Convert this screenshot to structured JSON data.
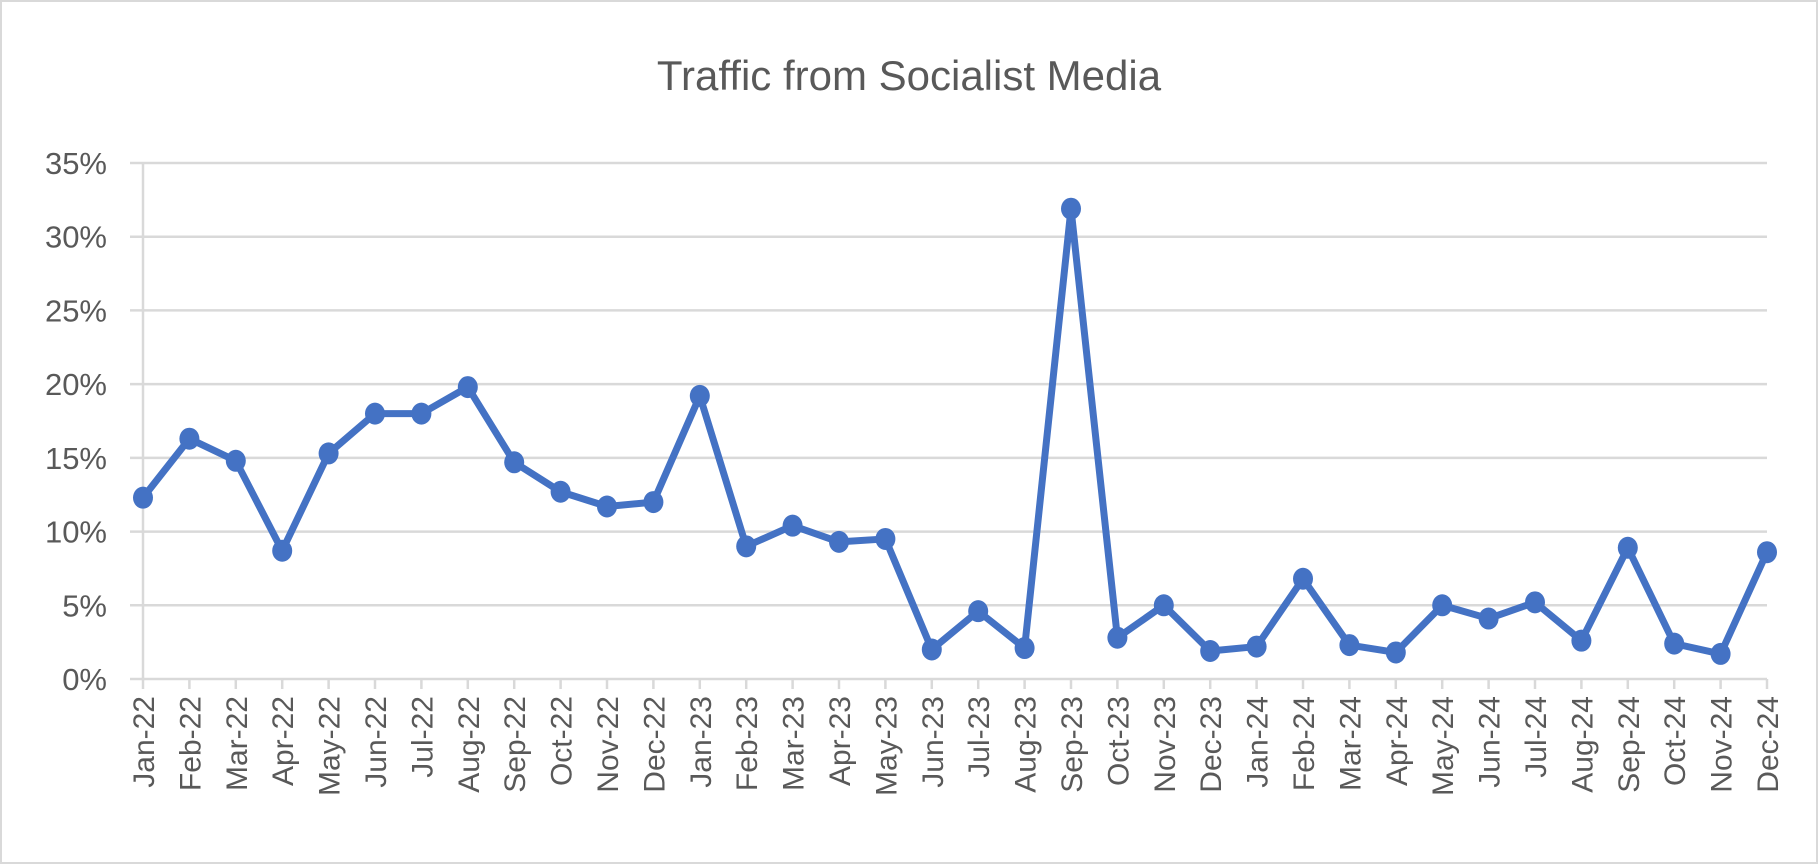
{
  "chart_data": {
    "type": "line",
    "title": "Traffic from Socialist Media",
    "xlabel": "",
    "ylabel": "",
    "categories": [
      "Jan-22",
      "Feb-22",
      "Mar-22",
      "Apr-22",
      "May-22",
      "Jun-22",
      "Jul-22",
      "Aug-22",
      "Sep-22",
      "Oct-22",
      "Nov-22",
      "Dec-22",
      "Jan-23",
      "Feb-23",
      "Mar-23",
      "Apr-23",
      "May-23",
      "Jun-23",
      "Jul-23",
      "Aug-23",
      "Sep-23",
      "Oct-23",
      "Nov-23",
      "Dec-23",
      "Jan-24",
      "Feb-24",
      "Mar-24",
      "Apr-24",
      "May-24",
      "Jun-24",
      "Jul-24",
      "Aug-24",
      "Sep-24",
      "Oct-24",
      "Nov-24",
      "Dec-24"
    ],
    "values": [
      12.3,
      16.3,
      14.8,
      8.7,
      15.3,
      18.0,
      18.0,
      19.8,
      14.7,
      12.7,
      11.7,
      12.0,
      19.2,
      9.0,
      10.4,
      9.3,
      9.5,
      2.0,
      4.6,
      2.1,
      31.9,
      2.8,
      5.0,
      1.9,
      2.2,
      6.8,
      2.3,
      1.8,
      5.0,
      4.1,
      5.2,
      2.6,
      8.9,
      2.4,
      1.7,
      8.6
    ],
    "ylim": [
      0,
      35
    ],
    "yticks": [
      "0%",
      "5%",
      "10%",
      "15%",
      "20%",
      "25%",
      "30%",
      "35%"
    ],
    "grid": true,
    "legend": "none",
    "marker": "circle",
    "series_color": "#4472c4",
    "grid_color": "#d9d9d9"
  }
}
